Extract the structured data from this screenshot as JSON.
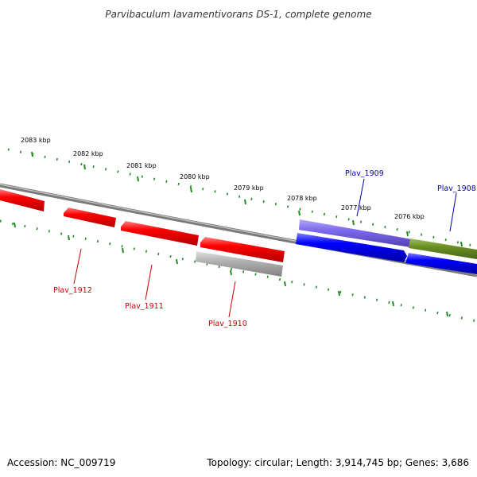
{
  "title": "Parvibaculum lavamentivorans DS-1, complete genome",
  "footer": {
    "accession": "Accession: NC_009719",
    "summary": "Topology: circular; Length: 3,914,745 bp; Genes: 3,686"
  },
  "colors": {
    "backbone": "#808080",
    "tick": "#228b22",
    "reverse_gene": "#ff0000",
    "forward_gene": "#0000ff",
    "pseudo_gene": "#aaaaaa",
    "purple_gene": "#7b68ee",
    "olive_gene": "#6b8e23",
    "reverse_label": "#cc0000",
    "forward_label": "#0000aa"
  },
  "kbp_labels": [
    "2083 kbp",
    "2082 kbp",
    "2081 kbp",
    "2080 kbp",
    "2079 kbp",
    "2078 kbp",
    "2077 kbp",
    "2076 kbp"
  ],
  "gene_labels": {
    "plav_1912": "Plav_1912",
    "plav_1911": "Plav_1911",
    "plav_1910": "Plav_1910",
    "plav_1909": "Plav_1909",
    "plav_1908": "Plav_1908"
  }
}
